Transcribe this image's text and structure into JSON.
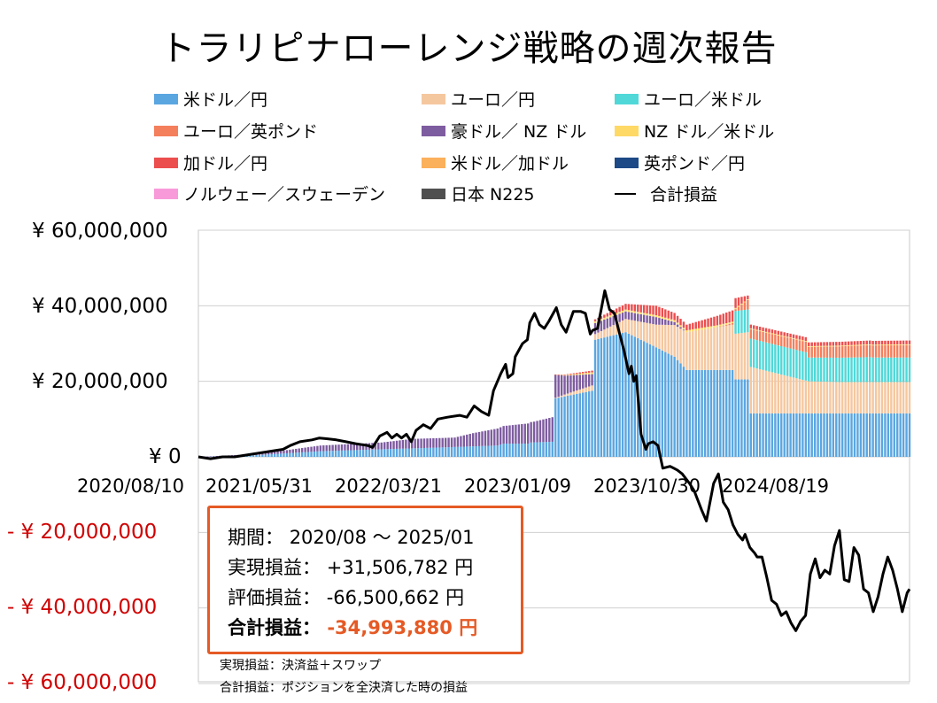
{
  "title": "トラリピナローレンジ戦略の週次報告",
  "legend": [
    {
      "label": "米ドル／円",
      "color": "#5aa6e0",
      "type": "bar"
    },
    {
      "label": "ユーロ／円",
      "color": "#f5c79f",
      "type": "bar"
    },
    {
      "label": "ユーロ／米ドル",
      "color": "#50d8d8",
      "type": "bar"
    },
    {
      "label": "ユーロ／英ポンド",
      "color": "#f47f5c",
      "type": "bar"
    },
    {
      "label": "豪ドル／ NZ ドル",
      "color": "#7e5ca0",
      "type": "bar"
    },
    {
      "label": "NZ ドル／米ドル",
      "color": "#ffd966",
      "type": "bar"
    },
    {
      "label": "加ドル／円",
      "color": "#ec4e4e",
      "type": "bar"
    },
    {
      "label": "米ドル／加ドル",
      "color": "#fbb05b",
      "type": "bar"
    },
    {
      "label": "英ポンド／円",
      "color": "#1d4986",
      "type": "bar"
    },
    {
      "label": "ノルウェー／スウェーデン",
      "color": "#f89ad9",
      "type": "bar"
    },
    {
      "label": "日本 N225",
      "color": "#505050",
      "type": "bar"
    },
    {
      "label": "合計損益",
      "color": "#000000",
      "type": "line"
    }
  ],
  "chart_data": {
    "type": "bar",
    "title": "トラリピナローレンジ戦略の週次報告",
    "stacked": true,
    "ylim": [
      -60000000,
      60000000
    ],
    "y_ticks": [
      60000000,
      40000000,
      20000000,
      0,
      -20000000,
      -40000000,
      -60000000
    ],
    "y_tick_labels": [
      "¥ 60,000,000",
      "¥ 40,000,000",
      "¥ 20,000,000",
      "¥ 0",
      "- ¥ 20,000,000",
      "- ¥ 40,000,000",
      "- ¥ 60,000,000"
    ],
    "x_tick_labels": [
      "2020/08/10",
      "2021/05/31",
      "2022/03/21",
      "2023/01/09",
      "2023/10/30",
      "2024/08/19"
    ],
    "x_range_weeks": 233,
    "x_tick_weeks": [
      0,
      42,
      84,
      126,
      168,
      210
    ],
    "grid": true,
    "legend_position": "top",
    "bar_segments": [
      {
        "series": "米ドル／円",
        "color": "#5aa6e0",
        "points": [
          [
            0,
            0
          ],
          [
            20,
            500000
          ],
          [
            40,
            1500000
          ],
          [
            60,
            2000000
          ],
          [
            80,
            2500000
          ],
          [
            98,
            3000000
          ],
          [
            100,
            3500000
          ],
          [
            108,
            3500000
          ],
          [
            109,
            3800000
          ],
          [
            116,
            4000000
          ],
          [
            117,
            15500000
          ],
          [
            129,
            17500000
          ],
          [
            130,
            31000000
          ],
          [
            140,
            33000000
          ],
          [
            150,
            29000000
          ],
          [
            156,
            26500000
          ],
          [
            160,
            23000000
          ],
          [
            175,
            23000000
          ],
          [
            176,
            20500000
          ],
          [
            180,
            20500000
          ],
          [
            181,
            11500000
          ],
          [
            233,
            11500000
          ]
        ]
      },
      {
        "series": "ユーロ／円",
        "color": "#f5c79f",
        "points": [
          [
            0,
            0
          ],
          [
            116,
            0
          ],
          [
            120,
            500000
          ],
          [
            130,
            1500000
          ],
          [
            140,
            3500000
          ],
          [
            150,
            6000000
          ],
          [
            160,
            10000000
          ],
          [
            175,
            12000000
          ],
          [
            180,
            12500000
          ],
          [
            200,
            8500000
          ],
          [
            210,
            8300000
          ],
          [
            233,
            8300000
          ]
        ]
      },
      {
        "series": "ユーロ／米ドル",
        "color": "#50d8d8",
        "points": [
          [
            0,
            0
          ],
          [
            175,
            0
          ],
          [
            176,
            6000000
          ],
          [
            180,
            6000000
          ],
          [
            181,
            7500000
          ],
          [
            199,
            7500000
          ],
          [
            200,
            6300000
          ],
          [
            220,
            6600000
          ],
          [
            221,
            6500000
          ],
          [
            233,
            6500000
          ]
        ]
      },
      {
        "series": "ユーロ／英ポンド",
        "color": "#f47f5c",
        "points": [
          [
            0,
            0
          ],
          [
            170,
            0
          ],
          [
            176,
            500000
          ],
          [
            180,
            2500000
          ],
          [
            200,
            2800000
          ],
          [
            220,
            3200000
          ],
          [
            233,
            3300000
          ]
        ]
      },
      {
        "series": "豪ドル／ NZ ドル",
        "color": "#7e5ca0",
        "points": [
          [
            0,
            0
          ],
          [
            20,
            300000
          ],
          [
            40,
            1500000
          ],
          [
            60,
            1800000
          ],
          [
            70,
            2500000
          ],
          [
            84,
            2500000
          ],
          [
            90,
            3500000
          ],
          [
            98,
            4500000
          ],
          [
            110,
            5500000
          ],
          [
            116,
            6500000
          ],
          [
            120,
            5000000
          ],
          [
            129,
            3000000
          ],
          [
            140,
            2000000
          ],
          [
            150,
            2000000
          ],
          [
            160,
            0
          ],
          [
            233,
            0
          ]
        ]
      },
      {
        "series": "NZ ドル／米ドル",
        "color": "#ffd966",
        "points": [
          [
            0,
            0
          ],
          [
            116,
            0
          ],
          [
            130,
            500000
          ],
          [
            170,
            500000
          ],
          [
            180,
            200000
          ],
          [
            233,
            200000
          ]
        ]
      },
      {
        "series": "加ドル／円",
        "color": "#ec4e4e",
        "points": [
          [
            0,
            0
          ],
          [
            116,
            0
          ],
          [
            130,
            500000
          ],
          [
            150,
            2500000
          ],
          [
            160,
            1500000
          ],
          [
            175,
            3000000
          ],
          [
            180,
            1000000
          ],
          [
            233,
            1000000
          ]
        ]
      },
      {
        "series": "米ドル／加ドル",
        "color": "#fbb05b",
        "points": [
          [
            0,
            0
          ],
          [
            233,
            0
          ]
        ]
      },
      {
        "series": "英ポンド／円",
        "color": "#1d4986",
        "points": [
          [
            0,
            0
          ],
          [
            233,
            0
          ]
        ]
      },
      {
        "series": "ノルウェー／スウェーデン",
        "color": "#f89ad9",
        "points": [
          [
            0,
            0
          ],
          [
            233,
            0
          ]
        ]
      },
      {
        "series": "日本 N225",
        "color": "#505050",
        "points": [
          [
            0,
            0
          ],
          [
            233,
            0
          ]
        ]
      }
    ],
    "line_series": {
      "name": "合計損益",
      "color": "#000000",
      "points": [
        [
          0,
          0
        ],
        [
          5,
          -500000
        ],
        [
          10,
          0
        ],
        [
          15,
          0
        ],
        [
          20,
          500000
        ],
        [
          25,
          1000000
        ],
        [
          30,
          1500000
        ],
        [
          35,
          2000000
        ],
        [
          38,
          3000000
        ],
        [
          42,
          4000000
        ],
        [
          47,
          4500000
        ],
        [
          50,
          5000000
        ],
        [
          53,
          4800000
        ],
        [
          57,
          4500000
        ],
        [
          61,
          4000000
        ],
        [
          65,
          3500000
        ],
        [
          70,
          3000000
        ],
        [
          72,
          2500000
        ],
        [
          75,
          5500000
        ],
        [
          78,
          6500000
        ],
        [
          80,
          5000000
        ],
        [
          82,
          6000000
        ],
        [
          84,
          5000000
        ],
        [
          86,
          6000000
        ],
        [
          88,
          4000000
        ],
        [
          90,
          7000000
        ],
        [
          93,
          8500000
        ],
        [
          96,
          7500000
        ],
        [
          99,
          10000000
        ],
        [
          103,
          10500000
        ],
        [
          108,
          11000000
        ],
        [
          111,
          10500000
        ],
        [
          114,
          13500000
        ],
        [
          117,
          12000000
        ],
        [
          120,
          11000000
        ],
        [
          122,
          17500000
        ],
        [
          125,
          22000000
        ],
        [
          127,
          24500000
        ],
        [
          128,
          21000000
        ],
        [
          130,
          22000000
        ],
        [
          131,
          26500000
        ],
        [
          134,
          30000000
        ],
        [
          136,
          31000000
        ],
        [
          137,
          35500000
        ],
        [
          139,
          38000000
        ],
        [
          141,
          35000000
        ],
        [
          143,
          34000000
        ],
        [
          145,
          36000000
        ],
        [
          148,
          39500000
        ],
        [
          150,
          35000000
        ],
        [
          152,
          33000000
        ],
        [
          155,
          38500000
        ],
        [
          158,
          38500000
        ],
        [
          160,
          38000000
        ],
        [
          162,
          32500000
        ],
        [
          163,
          33500000
        ],
        [
          165,
          34000000
        ],
        [
          168,
          44000000
        ],
        [
          170,
          39000000
        ],
        [
          172,
          38000000
        ],
        [
          174,
          33000000
        ],
        [
          176,
          28000000
        ],
        [
          178,
          22000000
        ],
        [
          179,
          24000000
        ],
        [
          180,
          20000000
        ],
        [
          181,
          21500000
        ],
        [
          183,
          6000000
        ],
        [
          185,
          2000000
        ],
        [
          186,
          3500000
        ],
        [
          188,
          4000000
        ],
        [
          190,
          3000000
        ],
        [
          192,
          -3000000
        ],
        [
          195,
          -2500000
        ],
        [
          198,
          -3500000
        ],
        [
          200,
          -4500000
        ],
        [
          203,
          -7000000
        ],
        [
          205,
          -9000000
        ],
        [
          208,
          -14000000
        ],
        [
          210,
          -17000000
        ],
        [
          213,
          -7000000
        ],
        [
          215,
          -4500000
        ],
        [
          217,
          -12000000
        ],
        [
          219,
          -14000000
        ],
        [
          221,
          -18000000
        ],
        [
          223,
          -20500000
        ],
        [
          225,
          -22000000
        ],
        [
          226,
          -20500000
        ],
        [
          228,
          -24000000
        ],
        [
          230,
          -25500000
        ],
        [
          231,
          -26500000
        ],
        [
          233,
          -26500000
        ]
      ]
    }
  },
  "line_extension": [
    [
      233,
      -26500000
    ],
    [
      235,
      -32000000
    ],
    [
      237,
      -38000000
    ],
    [
      239,
      -39000000
    ],
    [
      241,
      -42000000
    ],
    [
      243,
      -41000000
    ],
    [
      245,
      -44000000
    ],
    [
      247,
      -46000000
    ],
    [
      249,
      -43500000
    ],
    [
      251,
      -42000000
    ],
    [
      253,
      -31000000
    ],
    [
      255,
      -27000000
    ],
    [
      257,
      -32000000
    ],
    [
      259,
      -30000000
    ],
    [
      261,
      -31000000
    ],
    [
      263,
      -23500000
    ],
    [
      265,
      -19500000
    ],
    [
      267,
      -32500000
    ],
    [
      269,
      -33000000
    ],
    [
      271,
      -24000000
    ],
    [
      273,
      -26000000
    ],
    [
      275,
      -35000000
    ],
    [
      277,
      -36000000
    ],
    [
      279,
      -41000000
    ],
    [
      281,
      -37000000
    ],
    [
      283,
      -31000000
    ],
    [
      285,
      -26500000
    ],
    [
      287,
      -30000000
    ],
    [
      289,
      -35000000
    ],
    [
      291,
      -41000000
    ],
    [
      293,
      -36000000
    ],
    [
      294,
      -35000000
    ]
  ],
  "info": {
    "period_label": "期間：",
    "period_value": "2020/08 ～ 2025/01",
    "realized_label": "実現損益：",
    "realized_value": "+31,506,782 円",
    "unrealized_label": "評価損益：",
    "unrealized_value": "-66,500,662 円",
    "total_label": "合計損益：",
    "total_value": "-34,993,880 円"
  },
  "footnotes": {
    "realized": "実現損益：決済益＋スワップ",
    "total": "合計損益：ポジションを全決済した時の損益"
  }
}
